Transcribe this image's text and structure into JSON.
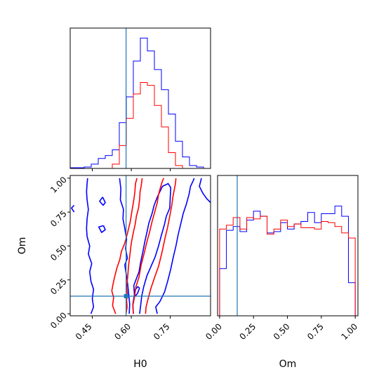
{
  "chart_data": [
    {
      "type": "histogram",
      "panel": "H0 marginal",
      "x_range": [
        0.365,
        0.905
      ],
      "bin_edges": [
        0.365,
        0.392,
        0.419,
        0.446,
        0.473,
        0.5,
        0.527,
        0.554,
        0.581,
        0.608,
        0.635,
        0.662,
        0.689,
        0.716,
        0.743,
        0.77,
        0.797,
        0.824,
        0.851,
        0.878,
        0.905
      ],
      "truth": 0.58,
      "series": [
        {
          "color": "#0000ff",
          "counts": [
            0.5,
            0.5,
            1,
            3,
            7,
            9,
            13,
            32,
            50,
            75,
            91,
            82,
            69,
            55,
            38,
            19,
            8,
            2,
            1,
            0
          ]
        },
        {
          "color": "#ff0000",
          "counts": [
            0,
            0,
            0,
            0,
            0,
            0,
            3,
            16,
            35,
            52,
            60,
            58,
            44,
            29,
            11,
            2,
            0,
            0,
            0,
            0
          ]
        }
      ]
    },
    {
      "type": "contour",
      "panel": "H0 vs Om",
      "xlabel": "H0",
      "ylabel": "Om",
      "x_range": [
        0.365,
        0.905
      ],
      "y_range": [
        -0.015,
        1.02
      ],
      "xticks": [
        "0.45",
        "0.60",
        "0.75"
      ],
      "yticks": [
        "0.00",
        "0.25",
        "0.50",
        "0.75",
        "1.00"
      ],
      "truth": [
        0.58,
        0.13
      ],
      "series": [
        {
          "color": "#0000ff",
          "contours": [
            [
              [
                0.445,
                0.0
              ],
              [
                0.455,
                0.05
              ],
              [
                0.45,
                0.11
              ],
              [
                0.455,
                0.18
              ],
              [
                0.445,
                0.24
              ],
              [
                0.44,
                0.31
              ],
              [
                0.448,
                0.37
              ],
              [
                0.435,
                0.44
              ],
              [
                0.44,
                0.5
              ],
              [
                0.43,
                0.57
              ],
              [
                0.428,
                0.63
              ],
              [
                0.43,
                0.7
              ],
              [
                0.435,
                0.77
              ],
              [
                0.43,
                0.84
              ],
              [
                0.428,
                0.9
              ],
              [
                0.43,
                0.96
              ],
              [
                0.432,
                1.0
              ]
            ],
            [
              [
                0.555,
                1.0
              ],
              [
                0.56,
                0.92
              ],
              [
                0.558,
                0.84
              ],
              [
                0.57,
                0.77
              ],
              [
                0.568,
                0.7
              ],
              [
                0.575,
                0.63
              ],
              [
                0.582,
                0.55
              ],
              [
                0.578,
                0.48
              ],
              [
                0.585,
                0.41
              ],
              [
                0.575,
                0.36
              ],
              [
                0.58,
                0.3
              ],
              [
                0.586,
                0.22
              ],
              [
                0.59,
                0.15
              ],
              [
                0.594,
                0.07
              ],
              [
                0.592,
                0.0
              ]
            ],
            [
              [
                0.608,
                0.0
              ],
              [
                0.606,
                0.07
              ],
              [
                0.612,
                0.14
              ],
              [
                0.61,
                0.21
              ],
              [
                0.62,
                0.26
              ],
              [
                0.63,
                0.31
              ],
              [
                0.636,
                0.38
              ],
              [
                0.645,
                0.46
              ],
              [
                0.652,
                0.53
              ],
              [
                0.66,
                0.6
              ],
              [
                0.668,
                0.67
              ],
              [
                0.68,
                0.74
              ],
              [
                0.688,
                0.8
              ],
              [
                0.7,
                0.86
              ],
              [
                0.71,
                0.9
              ],
              [
                0.72,
                0.94
              ],
              [
                0.742,
                0.96
              ],
              [
                0.752,
                0.93
              ],
              [
                0.75,
                0.86
              ],
              [
                0.748,
                0.78
              ],
              [
                0.735,
                0.72
              ],
              [
                0.728,
                0.66
              ],
              [
                0.716,
                0.58
              ],
              [
                0.705,
                0.5
              ],
              [
                0.692,
                0.42
              ],
              [
                0.676,
                0.35
              ],
              [
                0.66,
                0.28
              ],
              [
                0.648,
                0.2
              ],
              [
                0.64,
                0.13
              ],
              [
                0.636,
                0.06
              ],
              [
                0.632,
                0.0
              ]
            ],
            [
              [
                0.632,
                0.19
              ],
              [
                0.624,
                0.15
              ],
              [
                0.615,
                0.13
              ],
              [
                0.612,
                0.17
              ],
              [
                0.625,
                0.2
              ],
              [
                0.632,
                0.19
              ]
            ],
            [
              [
                0.7,
                0.0
              ],
              [
                0.694,
                0.05
              ],
              [
                0.71,
                0.09
              ],
              [
                0.728,
                0.16
              ],
              [
                0.74,
                0.24
              ],
              [
                0.752,
                0.33
              ],
              [
                0.762,
                0.42
              ],
              [
                0.772,
                0.5
              ],
              [
                0.78,
                0.58
              ],
              [
                0.79,
                0.66
              ],
              [
                0.8,
                0.74
              ],
              [
                0.812,
                0.81
              ],
              [
                0.822,
                0.88
              ],
              [
                0.828,
                0.94
              ],
              [
                0.838,
                0.98
              ],
              [
                0.842,
                1.0
              ]
            ],
            [
              [
                0.87,
                1.0
              ],
              [
                0.862,
                0.94
              ],
              [
                0.875,
                0.89
              ],
              [
                0.89,
                0.85
              ],
              [
                0.905,
                0.82
              ]
            ],
            [
              [
                0.38,
                0.8
              ],
              [
                0.37,
                0.78
              ],
              [
                0.38,
                0.75
              ]
            ],
            [
              [
                0.49,
                0.86
              ],
              [
                0.5,
                0.82
              ],
              [
                0.492,
                0.8
              ],
              [
                0.478,
                0.83
              ],
              [
                0.49,
                0.86
              ]
            ],
            [
              [
                0.493,
                0.65
              ],
              [
                0.5,
                0.62
              ],
              [
                0.486,
                0.6
              ],
              [
                0.475,
                0.64
              ],
              [
                0.493,
                0.65
              ]
            ]
          ]
        },
        {
          "color": "#ff0000",
          "contours": [
            [
              [
                0.54,
                0.0
              ],
              [
                0.528,
                0.06
              ],
              [
                0.532,
                0.12
              ],
              [
                0.525,
                0.17
              ],
              [
                0.53,
                0.22
              ],
              [
                0.537,
                0.28
              ],
              [
                0.545,
                0.34
              ],
              [
                0.556,
                0.4
              ],
              [
                0.562,
                0.46
              ],
              [
                0.575,
                0.52
              ],
              [
                0.586,
                0.6
              ],
              [
                0.596,
                0.68
              ],
              [
                0.603,
                0.76
              ],
              [
                0.61,
                0.84
              ],
              [
                0.614,
                0.9
              ],
              [
                0.616,
                0.96
              ],
              [
                0.622,
                1.0
              ]
            ],
            [
              [
                0.642,
                1.0
              ],
              [
                0.638,
                0.94
              ],
              [
                0.634,
                0.9
              ],
              [
                0.632,
                0.84
              ],
              [
                0.628,
                0.78
              ],
              [
                0.62,
                0.72
              ],
              [
                0.615,
                0.66
              ],
              [
                0.608,
                0.6
              ],
              [
                0.6,
                0.52
              ],
              [
                0.595,
                0.44
              ],
              [
                0.59,
                0.36
              ],
              [
                0.586,
                0.27
              ],
              [
                0.582,
                0.2
              ],
              [
                0.585,
                0.14
              ],
              [
                0.582,
                0.1
              ],
              [
                0.584,
                0.05
              ],
              [
                0.58,
                0.0
              ]
            ],
            [
              [
                0.608,
                0.0
              ],
              [
                0.606,
                0.06
              ],
              [
                0.612,
                0.12
              ],
              [
                0.618,
                0.2
              ],
              [
                0.63,
                0.27
              ],
              [
                0.638,
                0.36
              ],
              [
                0.65,
                0.45
              ],
              [
                0.66,
                0.53
              ],
              [
                0.67,
                0.6
              ],
              [
                0.68,
                0.68
              ],
              [
                0.69,
                0.75
              ],
              [
                0.7,
                0.82
              ],
              [
                0.705,
                0.88
              ],
              [
                0.712,
                0.93
              ],
              [
                0.72,
                0.98
              ],
              [
                0.725,
                1.0
              ]
            ],
            [
              [
                0.655,
                0.0
              ],
              [
                0.657,
                0.05
              ],
              [
                0.666,
                0.12
              ],
              [
                0.676,
                0.19
              ],
              [
                0.69,
                0.27
              ],
              [
                0.705,
                0.35
              ],
              [
                0.718,
                0.45
              ],
              [
                0.73,
                0.56
              ],
              [
                0.74,
                0.64
              ],
              [
                0.748,
                0.72
              ],
              [
                0.756,
                0.8
              ],
              [
                0.76,
                0.86
              ],
              [
                0.766,
                0.92
              ],
              [
                0.77,
                0.96
              ],
              [
                0.772,
                1.0
              ]
            ]
          ]
        }
      ]
    },
    {
      "type": "histogram",
      "panel": "Om marginal",
      "xlabel": "Om",
      "x_range": [
        -0.015,
        1.02
      ],
      "xticks": [
        "0.00",
        "0.25",
        "0.50",
        "0.75",
        "1.00"
      ],
      "bin_edges": [
        0,
        0.05,
        0.1,
        0.15,
        0.2,
        0.25,
        0.3,
        0.35,
        0.4,
        0.45,
        0.5,
        0.55,
        0.6,
        0.65,
        0.7,
        0.75,
        0.8,
        0.85,
        0.9,
        0.95,
        1.0
      ],
      "truth": 0.13,
      "series": [
        {
          "color": "#0000ff",
          "counts": [
            37,
            67,
            70,
            66,
            75,
            82,
            78,
            65,
            66,
            73,
            68,
            72,
            74,
            81,
            73,
            80,
            80,
            86,
            78,
            26
          ]
        },
        {
          "color": "#ff0000",
          "counts": [
            68,
            71,
            77,
            68,
            77,
            76,
            78,
            64,
            68,
            75,
            70,
            72,
            69,
            69,
            68,
            74,
            73,
            70,
            65,
            61
          ]
        }
      ]
    }
  ],
  "labels": {
    "h0_axis": "H0",
    "om_axis": "Om",
    "om_yaxis": "Om",
    "h0_ticks": [
      "0.45",
      "0.60",
      "0.75"
    ],
    "om_yticks": [
      "0.00",
      "0.25",
      "0.50",
      "0.75",
      "1.00"
    ],
    "om_xticks": [
      "0.00",
      "0.25",
      "0.50",
      "0.75",
      "1.00"
    ]
  },
  "colors": {
    "series_a": "#0000ff",
    "series_b": "#ff0000",
    "truth": "#1f77b4"
  }
}
